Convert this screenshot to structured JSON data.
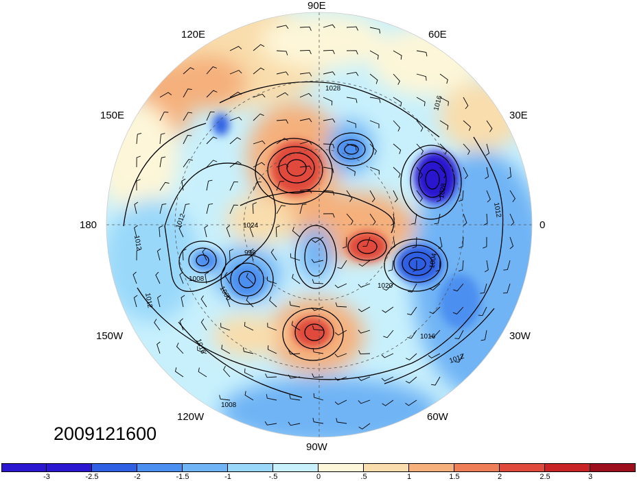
{
  "timestamp": "2009121600",
  "longitude_labels": {
    "e90": "90E",
    "e120": "120E",
    "e60": "60E",
    "e150": "150E",
    "e30": "30E",
    "lon180": "180",
    "lon0": "0",
    "w150": "150W",
    "w30": "30W",
    "w120": "120W",
    "w60": "60W",
    "w90": "90W"
  },
  "isobar_labels": [
    "1028",
    "1016",
    "1012",
    "1012",
    "1012",
    "1008",
    "1000",
    "996",
    "1024",
    "1020",
    "1016",
    "1016",
    "1012",
    "1008",
    "1004",
    "1028",
    "1012"
  ],
  "colorbar": {
    "ticks": [
      "-3",
      "-2.5",
      "-2",
      "-1.5",
      "-1",
      "-.5",
      "0",
      ".5",
      "1",
      "1.5",
      "2",
      "2.5",
      "3"
    ],
    "colors": [
      "#2a17cf",
      "#2f5fe3",
      "#4b8ff0",
      "#6fb4f5",
      "#9ad8fa",
      "#c8f0fc",
      "#fdf6d8",
      "#f9ddac",
      "#f5b07c",
      "#ee7e57",
      "#e04a3a",
      "#c82325",
      "#9d0f1c"
    ]
  },
  "colors": {
    "strong_negative": "#2a17cf",
    "negative": "#4b8ff0",
    "weak_negative": "#9ad8fa",
    "neutral": "#fdf6d8",
    "positive": "#f5b07c",
    "strong_positive": "#e04a3a"
  }
}
